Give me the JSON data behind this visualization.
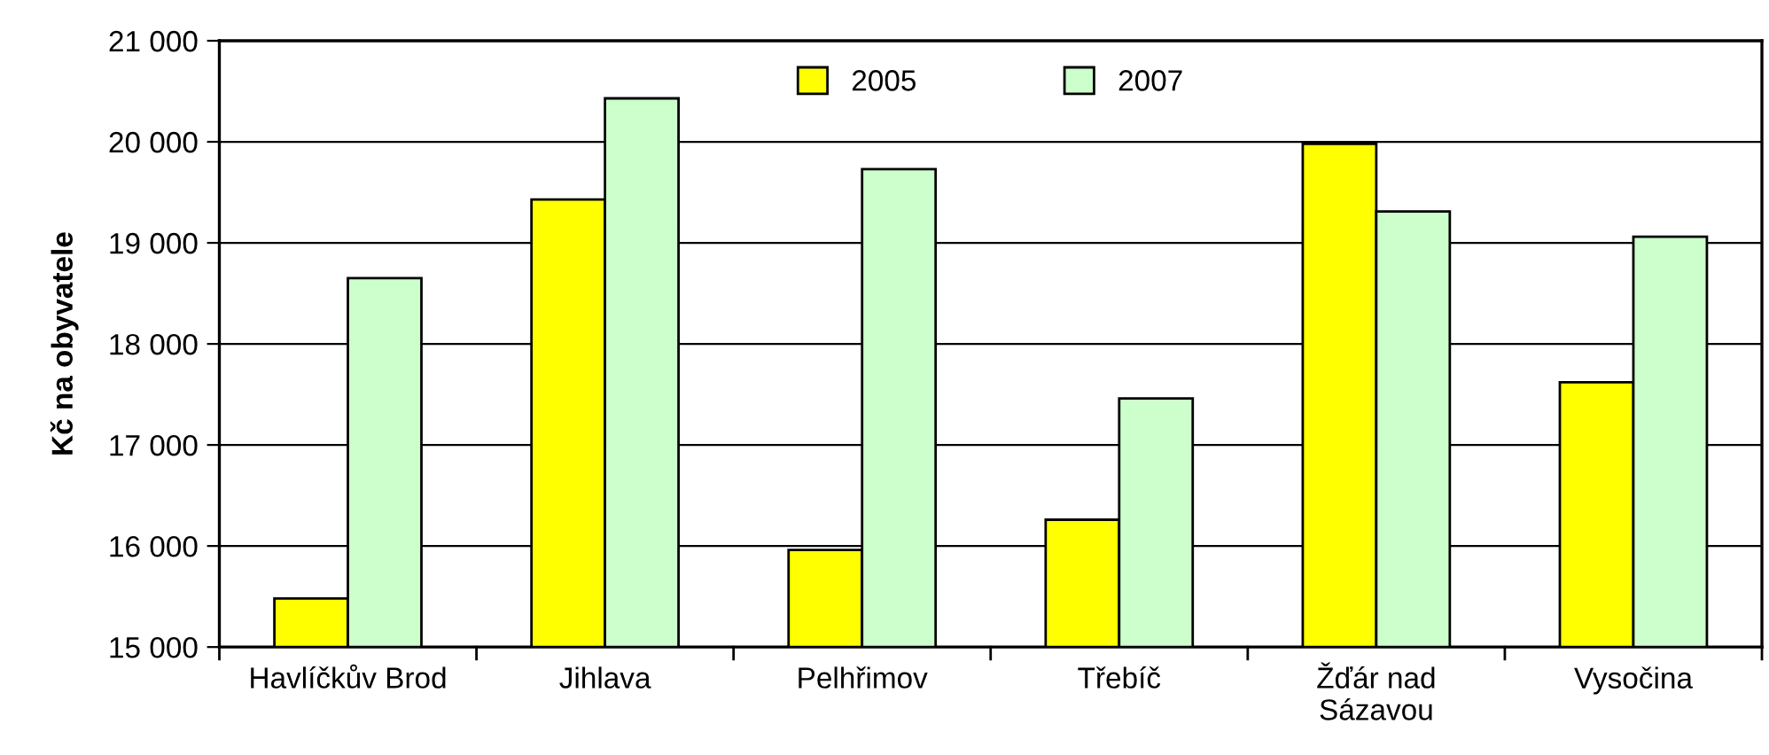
{
  "chart_data": {
    "type": "bar",
    "ylabel": "Kč na obyvatele",
    "categories": [
      "Havlíčkův Brod",
      "Jihlava",
      "Pelhřimov",
      "Třebíč",
      "Žďár nad\nSázavou",
      "Vysočina"
    ],
    "series": [
      {
        "name": "2005",
        "color": "#ffff00",
        "values": [
          15480,
          19430,
          15960,
          16260,
          19980,
          17620
        ]
      },
      {
        "name": "2007",
        "color": "#ccffcc",
        "values": [
          18650,
          20430,
          19730,
          17460,
          19310,
          19060
        ]
      }
    ],
    "ylim": [
      15000,
      21000
    ],
    "yticks": [
      {
        "value": 15000,
        "label": "15 000"
      },
      {
        "value": 16000,
        "label": "16 000"
      },
      {
        "value": 17000,
        "label": "17 000"
      },
      {
        "value": 18000,
        "label": "18 000"
      },
      {
        "value": 19000,
        "label": "19 000"
      },
      {
        "value": 20000,
        "label": "20 000"
      },
      {
        "value": 21000,
        "label": "21 000"
      }
    ],
    "grid": "y",
    "legend": "top"
  }
}
